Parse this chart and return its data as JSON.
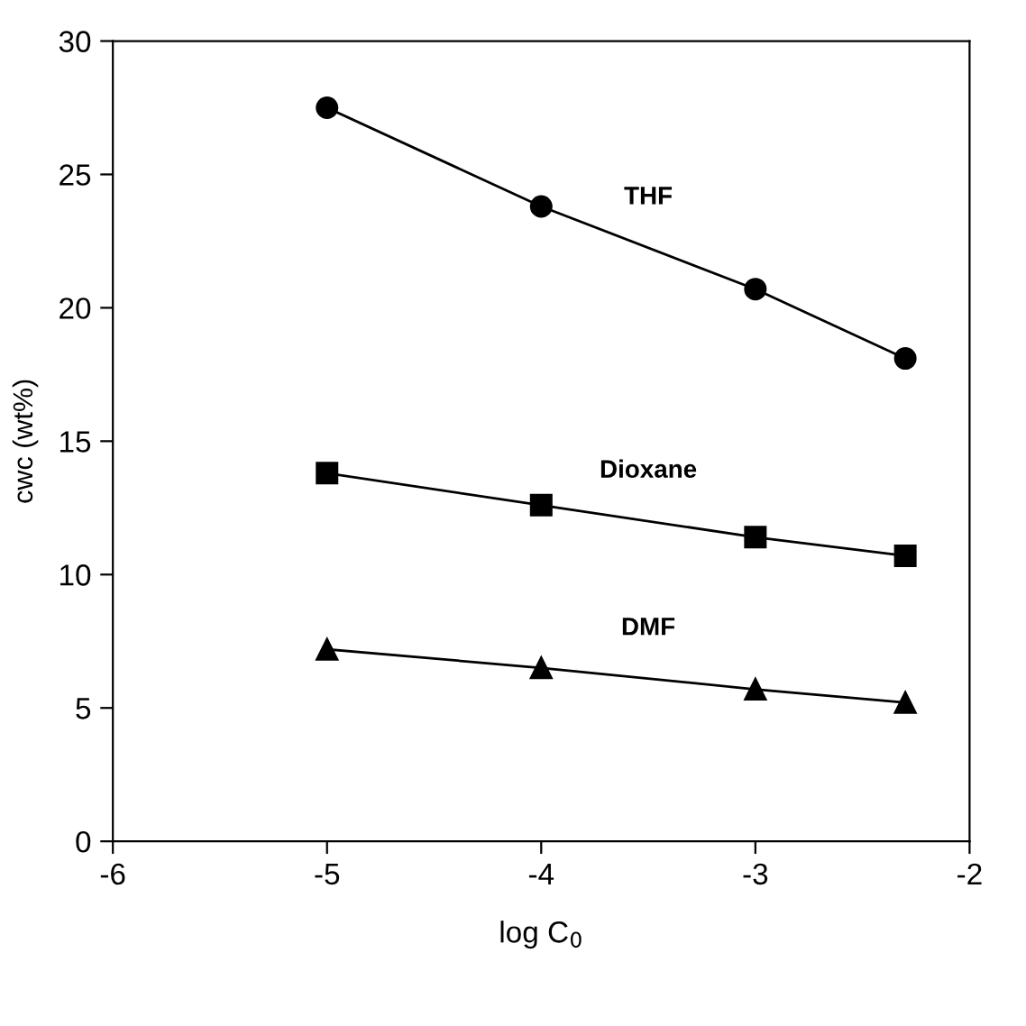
{
  "chart_data": {
    "type": "line",
    "xlabel": "log C$_{0}$",
    "ylabel": "cwc (wt%)",
    "x": [
      -5,
      -4,
      -3,
      -2.3
    ],
    "series": [
      {
        "name": "THF",
        "color": "#000000",
        "marker": "circle",
        "values": [
          27.5,
          23.8,
          20.7,
          18.1
        ]
      },
      {
        "name": "Dioxane",
        "color": "#000000",
        "marker": "square",
        "values": [
          13.8,
          12.6,
          11.4,
          10.7
        ]
      },
      {
        "name": "DMF",
        "color": "#000000",
        "marker": "triangle",
        "values": [
          7.2,
          6.5,
          5.7,
          5.2
        ]
      }
    ],
    "xlim": [
      -6,
      -2
    ],
    "ylim": [
      0,
      30
    ],
    "xticks": [
      -6,
      -5,
      -4,
      -3,
      -2
    ],
    "yticks": [
      0,
      5,
      10,
      15,
      20,
      25,
      30
    ],
    "grid": false,
    "legend": false,
    "line_style": "solid"
  }
}
